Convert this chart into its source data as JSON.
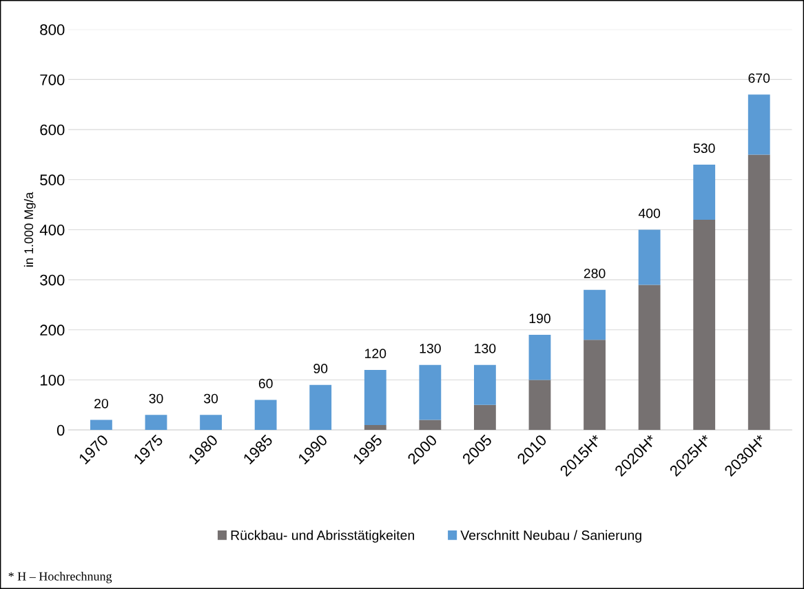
{
  "chart_data": {
    "type": "bar",
    "stacked": true,
    "ylabel": "in 1.000 Mg/a",
    "categories": [
      "1970",
      "1975",
      "1980",
      "1985",
      "1990",
      "1995",
      "2000",
      "2005",
      "2010",
      "2015H*",
      "2020H*",
      "2025H*",
      "2030H*"
    ],
    "series": [
      {
        "name": "Rückbau- und Abrisstätigkeiten",
        "color": "#767171",
        "values": [
          0,
          0,
          0,
          0,
          0,
          10,
          20,
          50,
          100,
          180,
          290,
          420,
          550
        ]
      },
      {
        "name": "Verschnitt Neubau / Sanierung",
        "color": "#5b9bd5",
        "values": [
          20,
          30,
          30,
          60,
          90,
          110,
          110,
          80,
          90,
          100,
          110,
          110,
          120
        ]
      }
    ],
    "totals": [
      "20",
      "30",
      "30",
      "60",
      "90",
      "120",
      "130",
      "130",
      "190",
      "280",
      "400",
      "530",
      "670"
    ],
    "ylim": [
      0,
      800
    ],
    "yticks": [
      0,
      100,
      200,
      300,
      400,
      500,
      600,
      700,
      800
    ],
    "grid": "y",
    "legend": "bottom",
    "annotations": [
      "* H – Hochrechnung"
    ]
  }
}
